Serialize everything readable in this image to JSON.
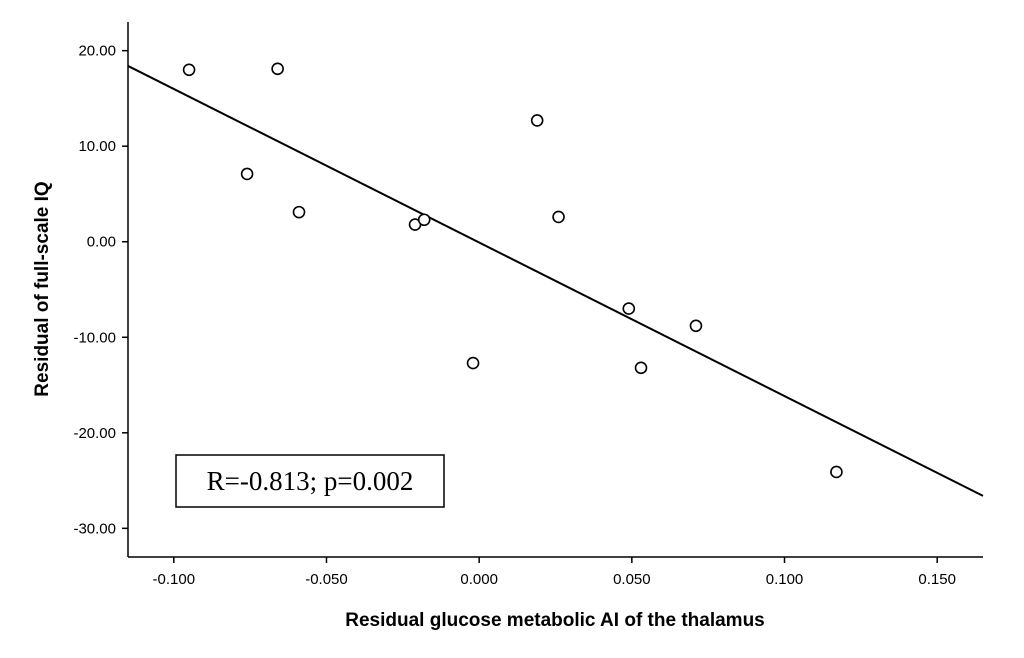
{
  "chart_data": {
    "type": "scatter",
    "title": "",
    "xlabel": "Residual glucose metabolic AI of the thalamus",
    "ylabel": "Residual of full-scale IQ",
    "xlim": [
      -0.115,
      0.165
    ],
    "ylim": [
      -33,
      23
    ],
    "x_ticks": [
      -0.1,
      -0.05,
      0.0,
      0.05,
      0.1,
      0.15
    ],
    "x_tick_labels": [
      "-0.100",
      "-0.050",
      "0.000",
      "0.050",
      "0.100",
      "0.150"
    ],
    "y_ticks": [
      20,
      10,
      0,
      -10,
      -20,
      -30
    ],
    "y_tick_labels": [
      "20.00",
      "10.00",
      "0.00",
      "-10.00",
      "-20.00",
      "-30.00"
    ],
    "grid": false,
    "legend": "none",
    "points": [
      {
        "x": -0.095,
        "y": 18.0
      },
      {
        "x": -0.066,
        "y": 18.1
      },
      {
        "x": -0.076,
        "y": 7.1
      },
      {
        "x": -0.059,
        "y": 3.1
      },
      {
        "x": -0.021,
        "y": 1.8
      },
      {
        "x": -0.018,
        "y": 2.3
      },
      {
        "x": -0.002,
        "y": -12.7
      },
      {
        "x": 0.019,
        "y": 12.7
      },
      {
        "x": 0.026,
        "y": 2.6
      },
      {
        "x": 0.049,
        "y": -7.0
      },
      {
        "x": 0.053,
        "y": -13.2
      },
      {
        "x": 0.071,
        "y": -8.8
      },
      {
        "x": 0.117,
        "y": -24.1
      }
    ],
    "fit_line": {
      "x": [
        -0.115,
        0.165
      ],
      "y": [
        18.4,
        -26.6
      ]
    },
    "annotation": "R=-0.813; p=0.002"
  }
}
